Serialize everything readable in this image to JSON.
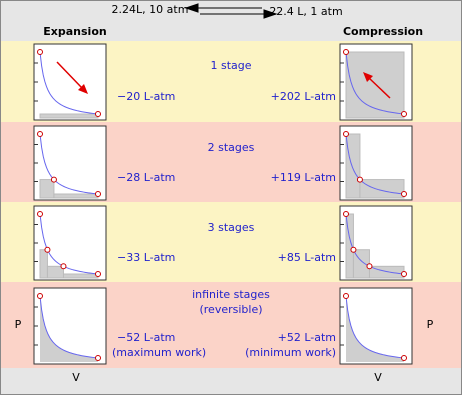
{
  "header": {
    "left_state": "2.24L, 10 atm",
    "right_state": "22.4 L, 1 atm"
  },
  "columns": {
    "expansion": "Expansion",
    "compression": "Compression"
  },
  "rows": [
    {
      "label": "1 stage",
      "expansion_work": "−20 L-atm",
      "compression_work": "+202 L-atm"
    },
    {
      "label": "2 stages",
      "expansion_work": "−28 L-atm",
      "compression_work": "+119 L-atm"
    },
    {
      "label": "3 stages",
      "expansion_work": "−33 L-atm",
      "compression_work": "+85 L-atm"
    },
    {
      "label": "infinite stages",
      "sublabel": "(reversible)",
      "expansion_work": "−52 L-atm",
      "expansion_note": "(maximum work)",
      "compression_work": "+52 L-atm",
      "compression_note": "(minimum work)"
    }
  ],
  "axes": {
    "p": "P",
    "v": "V"
  }
}
